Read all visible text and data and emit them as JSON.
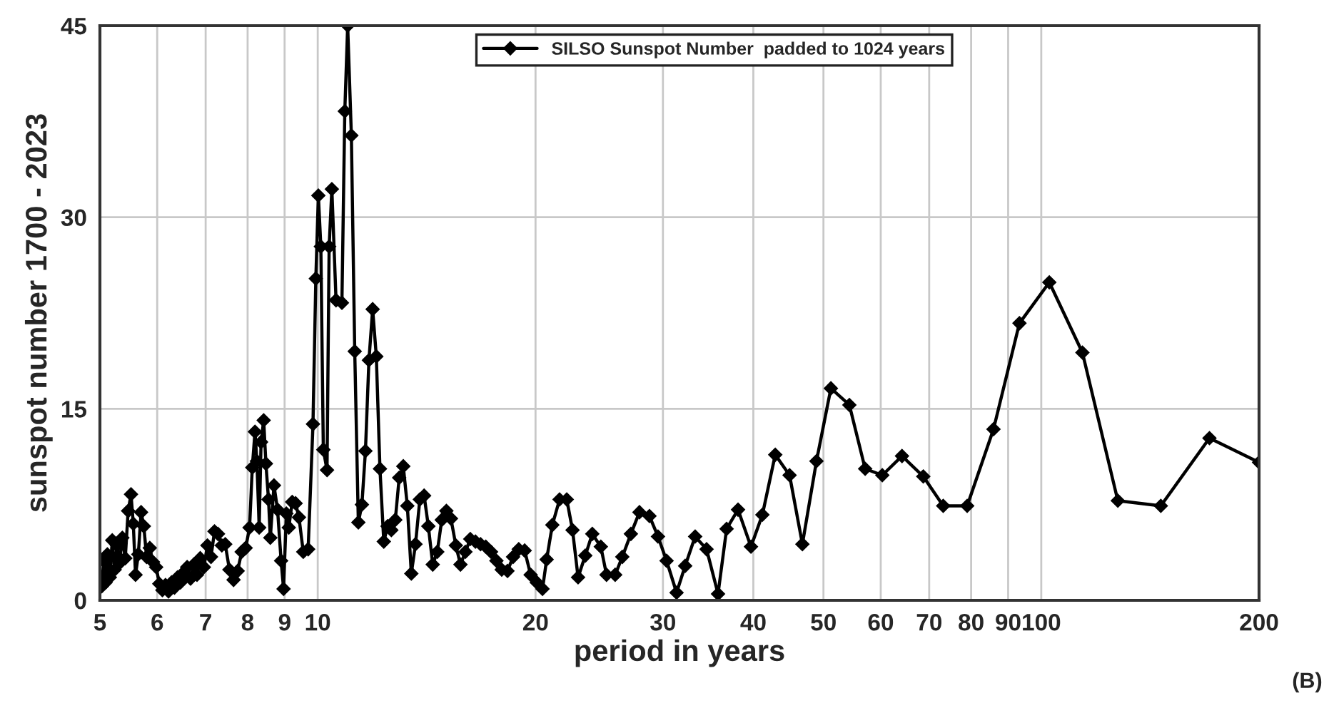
{
  "chart_data": {
    "type": "line",
    "xlabel": "period in years",
    "ylabel": "sunspot number 1700 - 2023",
    "annotations": [
      "(B)"
    ],
    "log": "x",
    "grid": true,
    "legend": "top",
    "marker": "diamond",
    "line_style": "solid",
    "xlim": [
      5,
      200
    ],
    "xticks": [
      5,
      6,
      7,
      8,
      9,
      10,
      20,
      30,
      40,
      50,
      60,
      70,
      80,
      90,
      100,
      200
    ],
    "ylim": [
      0,
      45
    ],
    "yticks": [
      0,
      15,
      30,
      45
    ],
    "series": [
      {
        "name": "SILSO Sunspot Number  padded to 1024 years",
        "color": "#000000",
        "x": [
          5.03,
          5.06,
          5.09,
          5.12,
          5.16,
          5.2,
          5.24,
          5.28,
          5.32,
          5.37,
          5.42,
          5.47,
          5.52,
          5.56,
          5.6,
          5.65,
          5.7,
          5.75,
          5.8,
          5.86,
          5.92,
          5.98,
          6.04,
          6.1,
          6.16,
          6.22,
          6.28,
          6.34,
          6.4,
          6.46,
          6.53,
          6.6,
          6.67,
          6.74,
          6.81,
          6.88,
          6.96,
          7.04,
          7.12,
          7.2,
          7.28,
          7.37,
          7.45,
          7.55,
          7.65,
          7.75,
          7.85,
          7.95,
          8.05,
          8.12,
          8.19,
          8.24,
          8.3,
          8.35,
          8.42,
          8.48,
          8.55,
          8.6,
          8.7,
          8.8,
          8.9,
          8.97,
          9.05,
          9.12,
          9.22,
          9.32,
          9.42,
          9.55,
          9.7,
          9.85,
          9.94,
          10.02,
          10.1,
          10.18,
          10.3,
          10.37,
          10.46,
          10.6,
          10.8,
          10.9,
          11.0,
          11.13,
          11.25,
          11.38,
          11.51,
          11.64,
          11.77,
          11.91,
          12.05,
          12.19,
          12.34,
          12.49,
          12.64,
          12.8,
          12.96,
          13.13,
          13.3,
          13.47,
          13.65,
          13.84,
          14.03,
          14.22,
          14.42,
          14.63,
          14.84,
          15.06,
          15.28,
          15.52,
          15.75,
          16.0,
          16.25,
          16.52,
          16.79,
          17.07,
          17.36,
          17.66,
          17.96,
          18.29,
          18.62,
          18.96,
          19.32,
          19.69,
          20.08,
          20.45,
          20.72,
          21.1,
          21.59,
          22.09,
          22.5,
          22.9,
          23.43,
          23.96,
          24.62,
          25.07,
          25.77,
          26.36,
          27.09,
          27.84,
          28.74,
          29.53,
          30.35,
          31.33,
          32.2,
          33.24,
          34.47,
          35.75,
          36.74,
          38.1,
          39.7,
          41.17,
          42.89,
          44.89,
          46.76,
          48.9,
          51.2,
          54.3,
          57.1,
          60.3,
          64.2,
          68.7,
          73.2,
          79.0,
          85.9,
          93.3,
          102.6,
          114,
          127.6,
          146.3,
          170.8,
          200
        ],
        "values": [
          1.1,
          3.1,
          1.4,
          3.6,
          1.8,
          4.7,
          2.4,
          4.3,
          2.9,
          4.9,
          3.3,
          7.0,
          8.3,
          6.0,
          2.0,
          3.6,
          6.9,
          5.8,
          3.4,
          4.1,
          3.0,
          2.6,
          1.3,
          0.8,
          1.2,
          0.7,
          1.4,
          1.0,
          1.8,
          1.4,
          2.2,
          2.6,
          1.7,
          2.8,
          2.0,
          3.3,
          2.6,
          4.3,
          3.4,
          5.4,
          5.2,
          4.3,
          4.4,
          2.4,
          1.6,
          2.3,
          3.8,
          4.1,
          5.7,
          10.4,
          13.2,
          10.9,
          5.7,
          12.4,
          14.1,
          10.7,
          7.9,
          4.9,
          9.0,
          7.1,
          3.1,
          0.9,
          6.8,
          5.7,
          7.7,
          7.6,
          6.5,
          3.8,
          4.0,
          13.8,
          25.2,
          31.7,
          27.7,
          11.8,
          10.2,
          27.7,
          32.2,
          23.5,
          23.3,
          38.3,
          45,
          36.4,
          19.5,
          6.1,
          7.5,
          11.7,
          18.8,
          22.8,
          19.1,
          10.3,
          4.6,
          5.8,
          5.5,
          6.3,
          9.6,
          10.5,
          7.4,
          2.1,
          4.4,
          7.9,
          8.2,
          5.8,
          2.8,
          3.8,
          6.3,
          7.0,
          6.4,
          4.3,
          2.8,
          3.8,
          4.8,
          4.6,
          4.4,
          4.2,
          3.8,
          3.1,
          2.4,
          2.3,
          3.4,
          4.0,
          3.9,
          2.0,
          1.4,
          0.9,
          3.2,
          5.9,
          7.9,
          7.9,
          5.5,
          1.8,
          3.5,
          5.2,
          4.2,
          2.0,
          2.0,
          3.4,
          5.2,
          6.9,
          6.6,
          5.0,
          3.1,
          0.6,
          2.7,
          5.0,
          4.0,
          0.5,
          5.6,
          7.1,
          4.2,
          6.7,
          11.4,
          9.8,
          4.4,
          10.9,
          16.6,
          15.3,
          10.3,
          9.8,
          11.3,
          9.7,
          7.4,
          7.4,
          13.4,
          21.7,
          24.9,
          19.4,
          7.8,
          7.4,
          12.7,
          10.8
        ]
      }
    ]
  }
}
